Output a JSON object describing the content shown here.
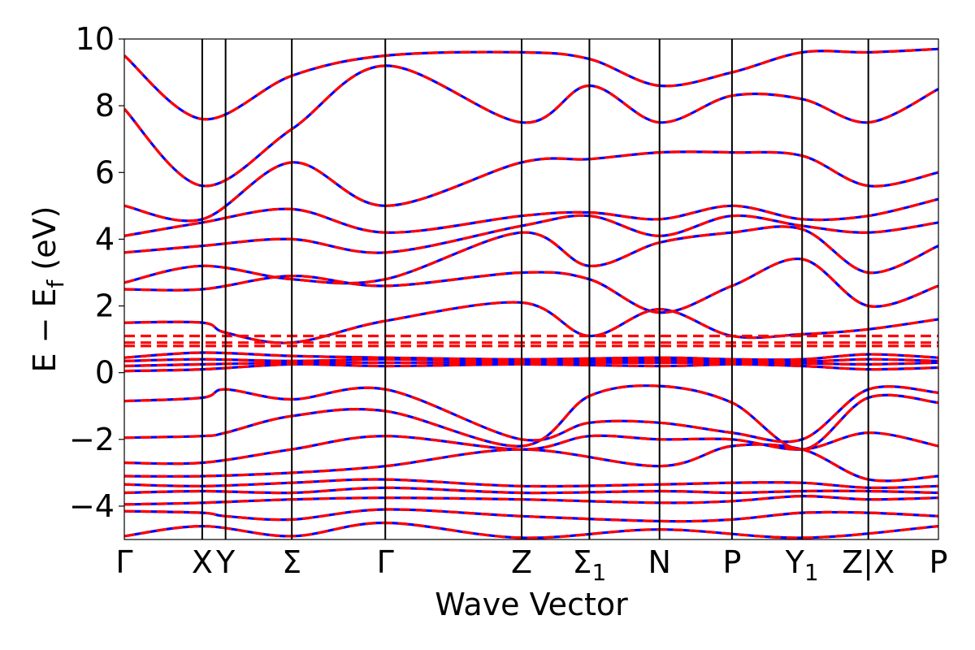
{
  "chart_data": {
    "type": "line",
    "xlabel": "Wave Vector",
    "ylabel": "E − E_f (eV)",
    "ylabel_main": "E − E",
    "ylabel_sub": "f",
    "ylabel_unit": "(eV)",
    "ylim": [
      -5,
      10
    ],
    "yticks": [
      -4,
      -2,
      0,
      2,
      4,
      6,
      8,
      10
    ],
    "ytick_labels": [
      "−4",
      "−2",
      "0",
      "2",
      "4",
      "6",
      "8",
      "10"
    ],
    "kpath": [
      {
        "label": "Γ",
        "sub": "",
        "x": 0.0
      },
      {
        "label": "X",
        "sub": "",
        "x": 1.0
      },
      {
        "label": "Y",
        "sub": "",
        "x": 1.3
      },
      {
        "label": "Σ",
        "sub": "",
        "x": 2.15
      },
      {
        "label": "Γ",
        "sub": "",
        "x": 3.35
      },
      {
        "label": "Z",
        "sub": "",
        "x": 5.1
      },
      {
        "label": "Σ",
        "sub": "1",
        "x": 5.97
      },
      {
        "label": "N",
        "sub": "",
        "x": 6.87
      },
      {
        "label": "P",
        "sub": "",
        "x": 7.8
      },
      {
        "label": "Y",
        "sub": "1",
        "x": 8.7
      },
      {
        "label": "Z|X",
        "sub": "",
        "x": 9.55
      },
      {
        "label": "P",
        "sub": "",
        "x": 10.45
      }
    ],
    "xlim": [
      0,
      10.45
    ],
    "series": [
      {
        "style": "solid",
        "color": "#0000ff"
      },
      {
        "style": "dashed",
        "color": "#ff0000"
      }
    ],
    "bands_dft": [
      [
        [
          0,
          -4.9
        ],
        [
          1,
          -4.6
        ],
        [
          2.15,
          -4.9
        ],
        [
          3.35,
          -4.5
        ],
        [
          5.1,
          -4.95
        ],
        [
          6.87,
          -4.7
        ],
        [
          8.7,
          -4.95
        ],
        [
          10.45,
          -4.6
        ]
      ],
      [
        [
          0,
          -4.15
        ],
        [
          1,
          -4.2
        ],
        [
          1.3,
          -4.3
        ],
        [
          2.15,
          -4.4
        ],
        [
          3.35,
          -4.1
        ],
        [
          5.1,
          -4.3
        ],
        [
          6.87,
          -4.45
        ],
        [
          7.8,
          -4.4
        ],
        [
          8.7,
          -4.2
        ],
        [
          9.55,
          -4.2
        ],
        [
          10.45,
          -4.3
        ]
      ],
      [
        [
          0,
          -3.95
        ],
        [
          1,
          -3.9
        ],
        [
          2.15,
          -3.8
        ],
        [
          3.35,
          -3.75
        ],
        [
          5.1,
          -3.8
        ],
        [
          6.87,
          -3.9
        ],
        [
          7.8,
          -3.85
        ],
        [
          8.7,
          -3.7
        ],
        [
          9.55,
          -3.8
        ],
        [
          10.45,
          -3.75
        ]
      ],
      [
        [
          0,
          -3.6
        ],
        [
          1,
          -3.55
        ],
        [
          2.15,
          -3.6
        ],
        [
          3.35,
          -3.45
        ],
        [
          5.1,
          -3.6
        ],
        [
          6.87,
          -3.55
        ],
        [
          7.8,
          -3.6
        ],
        [
          8.7,
          -3.55
        ],
        [
          9.55,
          -3.55
        ],
        [
          10.45,
          -3.6
        ]
      ],
      [
        [
          0,
          -3.35
        ],
        [
          1,
          -3.4
        ],
        [
          2.15,
          -3.3
        ],
        [
          3.35,
          -3.2
        ],
        [
          5.1,
          -3.4
        ],
        [
          6.87,
          -3.35
        ],
        [
          7.8,
          -3.3
        ],
        [
          8.7,
          -3.3
        ],
        [
          9.55,
          -3.45
        ],
        [
          10.45,
          -3.4
        ]
      ],
      [
        [
          0,
          -3.1
        ],
        [
          1,
          -3.1
        ],
        [
          2.15,
          -3.0
        ],
        [
          3.35,
          -2.8
        ],
        [
          5.1,
          -2.3
        ],
        [
          6.87,
          -2.8
        ],
        [
          7.8,
          -2.2
        ],
        [
          8.7,
          -2.3
        ],
        [
          9.55,
          -3.2
        ],
        [
          10.45,
          -3.1
        ]
      ],
      [
        [
          0,
          -2.7
        ],
        [
          1,
          -2.7
        ],
        [
          2.15,
          -2.3
        ],
        [
          3.35,
          -1.9
        ],
        [
          5.1,
          -2.3
        ],
        [
          5.97,
          -1.9
        ],
        [
          6.87,
          -2.0
        ],
        [
          7.8,
          -2.0
        ],
        [
          8.7,
          -2.3
        ],
        [
          9.55,
          -1.8
        ],
        [
          10.45,
          -2.2
        ]
      ],
      [
        [
          0,
          -1.95
        ],
        [
          1,
          -1.9
        ],
        [
          1.3,
          -1.8
        ],
        [
          2.15,
          -1.3
        ],
        [
          3.35,
          -1.15
        ],
        [
          5.1,
          -2.2
        ],
        [
          5.97,
          -0.7
        ],
        [
          6.87,
          -0.4
        ],
        [
          7.8,
          -0.9
        ],
        [
          8.7,
          -2.3
        ],
        [
          9.55,
          -0.75
        ],
        [
          10.45,
          -0.9
        ]
      ],
      [
        [
          0,
          -0.85
        ],
        [
          1,
          -0.75
        ],
        [
          1.3,
          -0.5
        ],
        [
          2.15,
          -0.8
        ],
        [
          3.35,
          -0.5
        ],
        [
          5.1,
          -2.0
        ],
        [
          5.97,
          -1.5
        ],
        [
          6.87,
          -1.5
        ],
        [
          7.8,
          -1.8
        ],
        [
          8.7,
          -2.0
        ],
        [
          9.55,
          -0.5
        ],
        [
          10.45,
          -0.6
        ]
      ],
      [
        [
          0,
          0.05
        ],
        [
          1,
          0.1
        ],
        [
          2.15,
          0.25
        ],
        [
          3.35,
          0.2
        ],
        [
          5.1,
          0.25
        ],
        [
          6.87,
          0.2
        ],
        [
          7.8,
          0.25
        ],
        [
          8.7,
          0.2
        ],
        [
          9.55,
          0.1
        ],
        [
          10.45,
          0.15
        ]
      ],
      [
        [
          0,
          0.2
        ],
        [
          1,
          0.25
        ],
        [
          2.15,
          0.3
        ],
        [
          3.35,
          0.3
        ],
        [
          5.1,
          0.3
        ],
        [
          6.87,
          0.3
        ],
        [
          7.8,
          0.3
        ],
        [
          8.7,
          0.28
        ],
        [
          9.55,
          0.25
        ],
        [
          10.45,
          0.3
        ]
      ],
      [
        [
          0,
          0.35
        ],
        [
          1,
          0.4
        ],
        [
          2.15,
          0.35
        ],
        [
          3.35,
          0.4
        ],
        [
          5.1,
          0.35
        ],
        [
          6.87,
          0.38
        ],
        [
          7.8,
          0.35
        ],
        [
          8.7,
          0.33
        ],
        [
          9.55,
          0.4
        ],
        [
          10.45,
          0.35
        ]
      ],
      [
        [
          0,
          0.45
        ],
        [
          1,
          0.6
        ],
        [
          2.15,
          0.5
        ],
        [
          3.35,
          0.45
        ],
        [
          5.1,
          0.4
        ],
        [
          6.87,
          0.45
        ],
        [
          7.8,
          0.4
        ],
        [
          8.7,
          0.4
        ],
        [
          9.55,
          0.55
        ],
        [
          10.45,
          0.45
        ]
      ],
      [
        [
          0,
          1.5
        ],
        [
          1,
          1.5
        ],
        [
          1.3,
          1.2
        ],
        [
          2.15,
          0.9
        ],
        [
          3.35,
          1.55
        ],
        [
          5.1,
          2.1
        ],
        [
          5.97,
          1.1
        ],
        [
          6.87,
          1.9
        ],
        [
          7.8,
          1.1
        ],
        [
          8.7,
          1.15
        ],
        [
          9.55,
          1.3
        ],
        [
          10.45,
          1.6
        ]
      ],
      [
        [
          0,
          2.5
        ],
        [
          1,
          2.5
        ],
        [
          2.15,
          2.9
        ],
        [
          3.35,
          2.6
        ],
        [
          5.1,
          3.0
        ],
        [
          5.97,
          2.8
        ],
        [
          6.87,
          1.8
        ],
        [
          7.8,
          2.6
        ],
        [
          8.7,
          3.4
        ],
        [
          9.55,
          2.0
        ],
        [
          10.45,
          2.6
        ]
      ],
      [
        [
          0,
          2.7
        ],
        [
          1,
          3.2
        ],
        [
          2.15,
          2.8
        ],
        [
          3.35,
          2.8
        ],
        [
          5.1,
          4.2
        ],
        [
          5.97,
          3.2
        ],
        [
          6.87,
          3.9
        ],
        [
          7.8,
          4.2
        ],
        [
          8.7,
          4.3
        ],
        [
          9.55,
          3.0
        ],
        [
          10.45,
          3.8
        ]
      ],
      [
        [
          0,
          3.6
        ],
        [
          1,
          3.8
        ],
        [
          2.15,
          4.0
        ],
        [
          3.35,
          3.6
        ],
        [
          5.1,
          4.4
        ],
        [
          5.97,
          4.7
        ],
        [
          6.87,
          4.1
        ],
        [
          7.8,
          4.7
        ],
        [
          8.7,
          4.4
        ],
        [
          9.55,
          4.2
        ],
        [
          10.45,
          4.5
        ]
      ],
      [
        [
          0,
          4.1
        ],
        [
          1,
          4.5
        ],
        [
          2.15,
          4.9
        ],
        [
          3.35,
          4.2
        ],
        [
          5.1,
          4.7
        ],
        [
          5.97,
          4.8
        ],
        [
          6.87,
          4.6
        ],
        [
          7.8,
          5.0
        ],
        [
          8.7,
          4.6
        ],
        [
          9.55,
          4.7
        ],
        [
          10.45,
          5.2
        ]
      ],
      [
        [
          0,
          5.0
        ],
        [
          1,
          4.6
        ],
        [
          2.15,
          6.3
        ],
        [
          3.35,
          5.0
        ],
        [
          5.1,
          6.3
        ],
        [
          5.97,
          6.4
        ],
        [
          6.87,
          6.6
        ],
        [
          7.8,
          6.6
        ],
        [
          8.7,
          6.5
        ],
        [
          9.55,
          5.6
        ],
        [
          10.45,
          6.0
        ]
      ],
      [
        [
          0,
          7.9
        ],
        [
          1,
          5.6
        ],
        [
          2.15,
          7.3
        ],
        [
          3.35,
          9.2
        ],
        [
          5.1,
          7.5
        ],
        [
          5.97,
          8.6
        ],
        [
          6.87,
          7.5
        ],
        [
          7.8,
          8.3
        ],
        [
          8.7,
          8.2
        ],
        [
          9.55,
          7.5
        ],
        [
          10.45,
          8.5
        ]
      ],
      [
        [
          0,
          9.5
        ],
        [
          1,
          7.6
        ],
        [
          2.15,
          8.9
        ],
        [
          3.35,
          9.5
        ],
        [
          5.1,
          9.6
        ],
        [
          5.97,
          9.4
        ],
        [
          6.87,
          8.6
        ],
        [
          7.8,
          9.0
        ],
        [
          8.7,
          9.6
        ],
        [
          9.55,
          9.6
        ],
        [
          10.45,
          9.7
        ]
      ]
    ],
    "bands_fit_flat": [
      0.8,
      0.9,
      1.1
    ]
  }
}
